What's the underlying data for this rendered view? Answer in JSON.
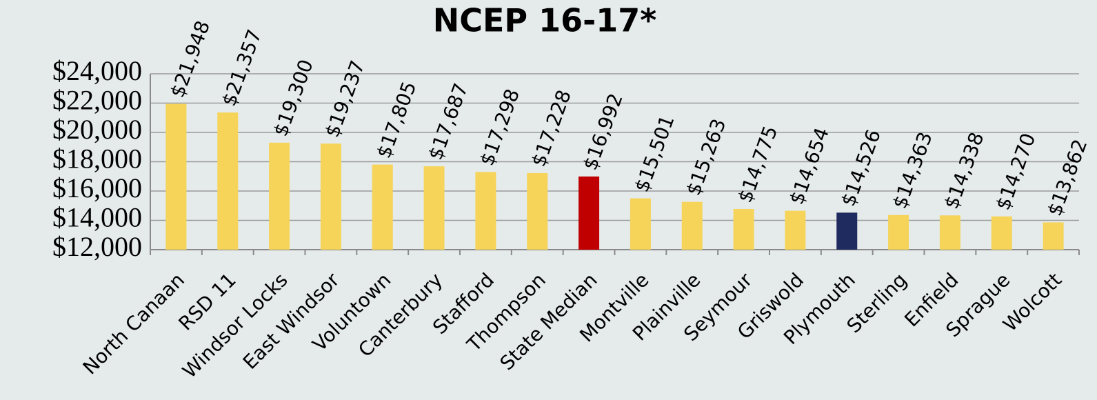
{
  "chart_data": {
    "type": "bar",
    "title": "NCEP 16-17*",
    "categories": [
      "North Canaan",
      "RSD 11",
      "Windsor Locks",
      "East Windsor",
      "Voluntown",
      "Canterbury",
      "Stafford",
      "Thompson",
      "State Median",
      "Montville",
      "Plainville",
      "Seymour",
      "Griswold",
      "Plymouth",
      "Sterling",
      "Enfield",
      "Sprague",
      "Wolcott"
    ],
    "values": [
      21948,
      21357,
      19300,
      19237,
      17805,
      17687,
      17298,
      17228,
      16992,
      15501,
      15263,
      14775,
      14654,
      14526,
      14363,
      14338,
      14270,
      13862
    ],
    "value_labels": [
      "$21,948",
      "$21,357",
      "$19,300",
      "$19,237",
      "$17,805",
      "$17,687",
      "$17,298",
      "$17,228",
      "$16,992",
      "$15,501",
      "$15,263",
      "$14,775",
      "$14,654",
      "$14,526",
      "$14,363",
      "$14,338",
      "$14,270",
      "$13,862"
    ],
    "colors": [
      "#f6d45a",
      "#f6d45a",
      "#f6d45a",
      "#f6d45a",
      "#f6d45a",
      "#f6d45a",
      "#f6d45a",
      "#f6d45a",
      "#c00000",
      "#f6d45a",
      "#f6d45a",
      "#f6d45a",
      "#f6d45a",
      "#1f2b5e",
      "#f6d45a",
      "#f6d45a",
      "#f6d45a",
      "#f6d45a"
    ],
    "ylim": [
      12000,
      24000
    ],
    "yticks": [
      {
        "value": 12000,
        "label": "$12,000"
      },
      {
        "value": 14000,
        "label": "$14,000"
      },
      {
        "value": 16000,
        "label": "$16,000"
      },
      {
        "value": 18000,
        "label": "$18,000"
      },
      {
        "value": 20000,
        "label": "$20,000"
      },
      {
        "value": 22000,
        "label": "$22,000"
      },
      {
        "value": 24000,
        "label": "$24,000"
      }
    ],
    "grid": true
  }
}
